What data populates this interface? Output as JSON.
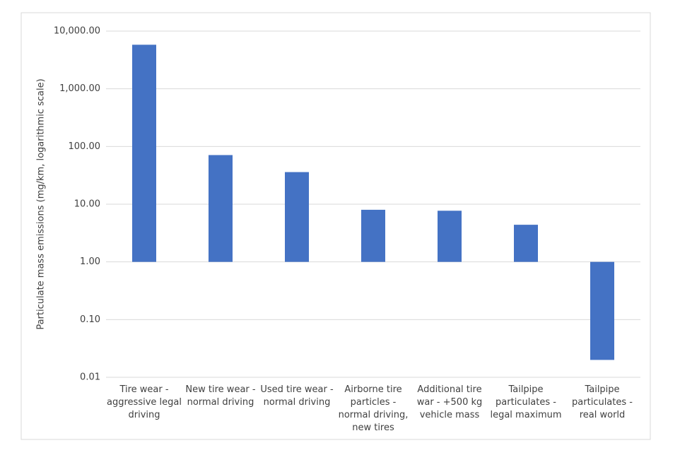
{
  "chart_data": {
    "type": "bar",
    "y_label": "Particulate mass emissions (mg/km, logarithmic scale)",
    "categories": [
      "Tire wear - aggressive legal driving",
      "New tire wear - normal driving",
      "Used tire wear - normal driving",
      "Airborne tire particles - normal driving, new tires",
      "Additional tire war - +500 kg vehicle mass",
      "Tailpipe particulates - legal maximum",
      "Tailpipe particulates - real world"
    ],
    "values": [
      5800,
      71,
      36,
      8,
      7.7,
      4.4,
      0.02
    ],
    "color": "#4472c4",
    "log_scale": true,
    "ylim": [
      0.01,
      10000
    ],
    "yticks": [
      {
        "value": 0.01,
        "label": "0.01"
      },
      {
        "value": 0.1,
        "label": "0.10"
      },
      {
        "value": 1,
        "label": "1.00"
      },
      {
        "value": 10,
        "label": "10.00"
      },
      {
        "value": 100,
        "label": "100.00"
      },
      {
        "value": 1000,
        "label": "1,000.00"
      },
      {
        "value": 10000,
        "label": "10,000.00"
      }
    ],
    "grid": true
  }
}
